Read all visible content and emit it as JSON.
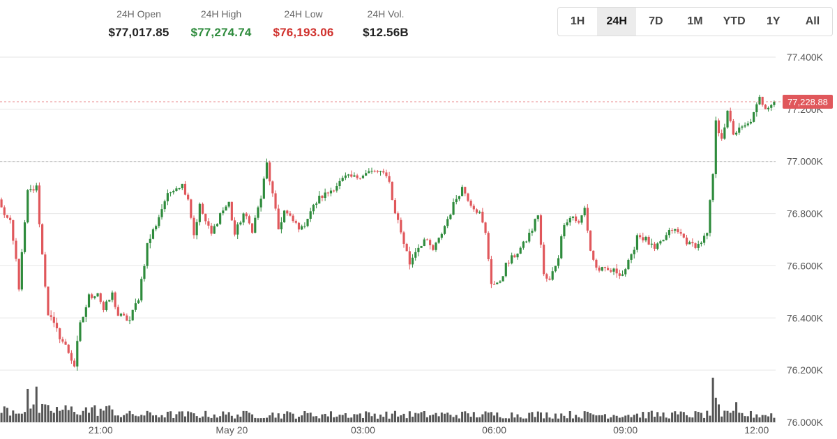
{
  "stats": [
    {
      "label": "24H Open",
      "value": "$77,017.85",
      "color": "#222222"
    },
    {
      "label": "24H High",
      "value": "$77,274.74",
      "color": "#2e8b3c"
    },
    {
      "label": "24H Low",
      "value": "$76,193.06",
      "color": "#d0312d"
    },
    {
      "label": "24H Vol.",
      "value": "$12.56B",
      "color": "#222222"
    }
  ],
  "tabs": [
    "1H",
    "24H",
    "7D",
    "1M",
    "YTD",
    "1Y",
    "All"
  ],
  "active_tab": "24H",
  "colors": {
    "up": "#2e8b3c",
    "down": "#e0575b",
    "volume": "#555555",
    "grid": "#e6e6e6",
    "price_tag": "#e0575b"
  },
  "chart_data": {
    "type": "candlestick",
    "ylim": [
      76000,
      77400
    ],
    "y_ticks": [
      {
        "value": 77400,
        "label": "77.400K"
      },
      {
        "value": 77200,
        "label": "77.200K"
      },
      {
        "value": 77000,
        "label": "77.000K"
      },
      {
        "value": 76800,
        "label": "76.800K"
      },
      {
        "value": 76600,
        "label": "76.600K"
      },
      {
        "value": 76400,
        "label": "76.400K"
      },
      {
        "value": 76200,
        "label": "76.200K"
      },
      {
        "value": 76000,
        "label": "76.000K"
      }
    ],
    "x_ticks": [
      {
        "index": 34,
        "label": "21:00"
      },
      {
        "index": 79,
        "label": "May 20"
      },
      {
        "index": 124,
        "label": "03:00"
      },
      {
        "index": 169,
        "label": "06:00"
      },
      {
        "index": 214,
        "label": "09:00"
      },
      {
        "index": 259,
        "label": "12:00"
      }
    ],
    "last_price": {
      "value": 77228.88,
      "label": "77,228.88"
    },
    "reference_line": 77000,
    "candle_count": 266,
    "anchors": [
      [
        0,
        76820,
        0.45
      ],
      [
        3,
        76760,
        0.5
      ],
      [
        5,
        76620,
        0.6
      ],
      [
        6,
        76520,
        0.55
      ],
      [
        9,
        76880,
        0.5
      ],
      [
        12,
        76900,
        0.45
      ],
      [
        14,
        76640,
        0.7
      ],
      [
        16,
        76420,
        0.55
      ],
      [
        18,
        76370,
        0.5
      ],
      [
        20,
        76330,
        0.5
      ],
      [
        23,
        76270,
        0.55
      ],
      [
        25,
        76220,
        0.75
      ],
      [
        27,
        76370,
        0.6
      ],
      [
        30,
        76480,
        0.55
      ],
      [
        33,
        76500,
        0.5
      ],
      [
        35,
        76430,
        0.45
      ],
      [
        38,
        76490,
        0.5
      ],
      [
        40,
        76410,
        0.5
      ],
      [
        44,
        76390,
        0.5
      ],
      [
        47,
        76480,
        0.55
      ],
      [
        50,
        76680,
        0.6
      ],
      [
        53,
        76760,
        0.5
      ],
      [
        56,
        76850,
        0.45
      ],
      [
        59,
        76900,
        0.45
      ],
      [
        62,
        76910,
        0.4
      ],
      [
        64,
        76860,
        0.45
      ],
      [
        66,
        76720,
        0.5
      ],
      [
        68,
        76830,
        0.4
      ],
      [
        70,
        76770,
        0.4
      ],
      [
        72,
        76720,
        0.45
      ],
      [
        75,
        76800,
        0.45
      ],
      [
        78,
        76840,
        0.5
      ],
      [
        80,
        76720,
        0.45
      ],
      [
        83,
        76800,
        0.4
      ],
      [
        86,
        76740,
        0.45
      ],
      [
        89,
        76860,
        0.45
      ],
      [
        91,
        76990,
        0.55
      ],
      [
        93,
        76870,
        0.45
      ],
      [
        95,
        76740,
        0.5
      ],
      [
        97,
        76810,
        0.4
      ],
      [
        100,
        76770,
        0.4
      ],
      [
        103,
        76740,
        0.45
      ],
      [
        106,
        76810,
        0.4
      ],
      [
        109,
        76860,
        0.4
      ],
      [
        112,
        76880,
        0.4
      ],
      [
        115,
        76910,
        0.4
      ],
      [
        118,
        76940,
        0.35
      ],
      [
        122,
        76940,
        0.3
      ],
      [
        126,
        76960,
        0.3
      ],
      [
        130,
        76960,
        0.3
      ],
      [
        133,
        76930,
        0.35
      ],
      [
        134,
        76850,
        0.5
      ],
      [
        137,
        76730,
        0.55
      ],
      [
        140,
        76610,
        0.55
      ],
      [
        142,
        76660,
        0.5
      ],
      [
        145,
        76700,
        0.45
      ],
      [
        148,
        76660,
        0.45
      ],
      [
        150,
        76700,
        0.4
      ],
      [
        153,
        76780,
        0.5
      ],
      [
        156,
        76860,
        0.45
      ],
      [
        158,
        76900,
        0.4
      ],
      [
        161,
        76840,
        0.45
      ],
      [
        164,
        76800,
        0.45
      ],
      [
        166,
        76720,
        0.5
      ],
      [
        168,
        76540,
        0.6
      ],
      [
        170,
        76520,
        0.6
      ],
      [
        173,
        76600,
        0.5
      ],
      [
        176,
        76640,
        0.45
      ],
      [
        179,
        76680,
        0.45
      ],
      [
        182,
        76740,
        0.5
      ],
      [
        184,
        76800,
        0.5
      ],
      [
        186,
        76560,
        0.6
      ],
      [
        188,
        76540,
        0.55
      ],
      [
        191,
        76640,
        0.5
      ],
      [
        193,
        76770,
        0.5
      ],
      [
        196,
        76790,
        0.4
      ],
      [
        198,
        76760,
        0.45
      ],
      [
        200,
        76820,
        0.5
      ],
      [
        202,
        76660,
        0.55
      ],
      [
        204,
        76590,
        0.5
      ],
      [
        207,
        76580,
        0.45
      ],
      [
        210,
        76580,
        0.4
      ],
      [
        213,
        76570,
        0.45
      ],
      [
        216,
        76630,
        0.5
      ],
      [
        218,
        76720,
        0.5
      ],
      [
        221,
        76700,
        0.45
      ],
      [
        224,
        76660,
        0.4
      ],
      [
        227,
        76700,
        0.45
      ],
      [
        230,
        76740,
        0.45
      ],
      [
        233,
        76720,
        0.4
      ],
      [
        236,
        76680,
        0.45
      ],
      [
        239,
        76680,
        0.4
      ],
      [
        242,
        76720,
        0.45
      ],
      [
        244,
        76950,
        0.8
      ],
      [
        245,
        77140,
        0.75
      ],
      [
        247,
        77100,
        0.55
      ],
      [
        249,
        77180,
        0.6
      ],
      [
        251,
        77110,
        0.5
      ],
      [
        253,
        77120,
        0.45
      ],
      [
        256,
        77140,
        0.45
      ],
      [
        258,
        77180,
        0.45
      ],
      [
        260,
        77240,
        0.5
      ],
      [
        262,
        77210,
        0.45
      ],
      [
        265,
        77228.88,
        0.4
      ]
    ],
    "volume_spikes": [
      [
        9,
        0.75
      ],
      [
        12,
        0.8
      ],
      [
        244,
        1.0
      ],
      [
        245,
        0.55
      ],
      [
        252,
        0.45
      ],
      [
        246,
        0.4
      ]
    ]
  }
}
